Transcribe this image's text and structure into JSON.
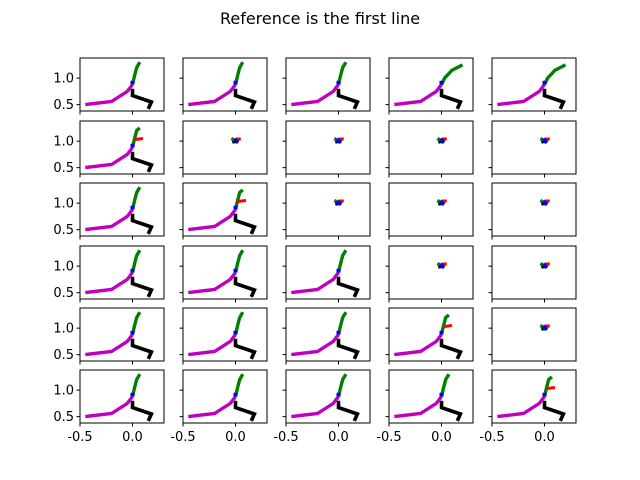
{
  "chart_data": {
    "type": "line",
    "title": "Reference is the first line",
    "rows": 6,
    "cols": 5,
    "xlim": [
      -0.5,
      0.3
    ],
    "ylim": [
      0.38,
      1.38
    ],
    "xticks": [
      -0.5,
      0.0
    ],
    "xtick_labels": [
      "-0.5",
      "0.0"
    ],
    "yticks": [
      0.5,
      1.0
    ],
    "ytick_labels": [
      "0.5",
      "1.0"
    ],
    "colors": {
      "arm": "#bf00bf",
      "leg": "#000000",
      "head": "#008000",
      "joint": "#0000ff",
      "marker": "#ff0000"
    },
    "poses": {
      "full": {
        "arm": [
          [
            -0.45,
            0.5
          ],
          [
            -0.2,
            0.56
          ],
          [
            -0.05,
            0.75
          ],
          [
            0.0,
            0.88
          ]
        ],
        "leg": [
          [
            0.0,
            0.8
          ],
          [
            0.0,
            0.67
          ],
          [
            0.18,
            0.55
          ],
          [
            0.15,
            0.42
          ]
        ],
        "head": [
          [
            0.0,
            0.88
          ],
          [
            0.02,
            1.05
          ],
          [
            0.04,
            1.2
          ],
          [
            0.07,
            1.3
          ]
        ],
        "joint": [
          [
            0.0,
            0.88
          ],
          [
            0.0,
            0.95
          ]
        ],
        "marker": []
      },
      "wide_head": {
        "arm": [
          [
            -0.45,
            0.5
          ],
          [
            -0.2,
            0.56
          ],
          [
            -0.05,
            0.75
          ],
          [
            0.0,
            0.88
          ]
        ],
        "leg": [
          [
            0.0,
            0.8
          ],
          [
            0.0,
            0.67
          ],
          [
            0.18,
            0.55
          ],
          [
            0.15,
            0.42
          ]
        ],
        "head": [
          [
            0.0,
            0.88
          ],
          [
            0.03,
            1.0
          ],
          [
            0.1,
            1.15
          ],
          [
            0.2,
            1.25
          ]
        ],
        "joint": [
          [
            0.0,
            0.88
          ],
          [
            0.0,
            0.95
          ]
        ],
        "marker": []
      },
      "tiny": {
        "arm": [],
        "leg": [
          [
            -0.02,
            1.03
          ],
          [
            -0.01,
            0.96
          ]
        ],
        "head": [
          [
            -0.04,
            1.05
          ],
          [
            0.0,
            1.01
          ],
          [
            0.03,
            0.98
          ]
        ],
        "joint": [
          [
            -0.01,
            1.04
          ],
          [
            0.02,
            0.97
          ]
        ],
        "marker": [
          [
            0.0,
            1.04
          ],
          [
            0.05,
            1.04
          ]
        ]
      },
      "full_red": {
        "arm": [
          [
            -0.45,
            0.5
          ],
          [
            -0.2,
            0.56
          ],
          [
            -0.05,
            0.75
          ],
          [
            0.0,
            0.88
          ]
        ],
        "leg": [
          [
            0.0,
            0.8
          ],
          [
            0.0,
            0.67
          ],
          [
            0.18,
            0.55
          ],
          [
            0.15,
            0.42
          ]
        ],
        "head": [
          [
            0.0,
            0.88
          ],
          [
            0.02,
            1.05
          ],
          [
            0.04,
            1.2
          ],
          [
            0.07,
            1.25
          ]
        ],
        "joint": [
          [
            0.0,
            0.88
          ],
          [
            0.0,
            0.95
          ]
        ],
        "marker": [
          [
            0.02,
            1.03
          ],
          [
            0.1,
            1.05
          ]
        ]
      }
    },
    "grid_poses": [
      [
        "full",
        "full",
        "full",
        "wide_head",
        "wide_head"
      ],
      [
        "full_red",
        "tiny",
        "tiny",
        "tiny",
        "tiny"
      ],
      [
        "full",
        "full_red",
        "tiny",
        "tiny",
        "tiny"
      ],
      [
        "full",
        "full",
        "full",
        "tiny",
        "tiny"
      ],
      [
        "full",
        "full",
        "full",
        "full_red",
        "tiny"
      ],
      [
        "full",
        "full",
        "full",
        "full",
        "full_red"
      ]
    ]
  }
}
